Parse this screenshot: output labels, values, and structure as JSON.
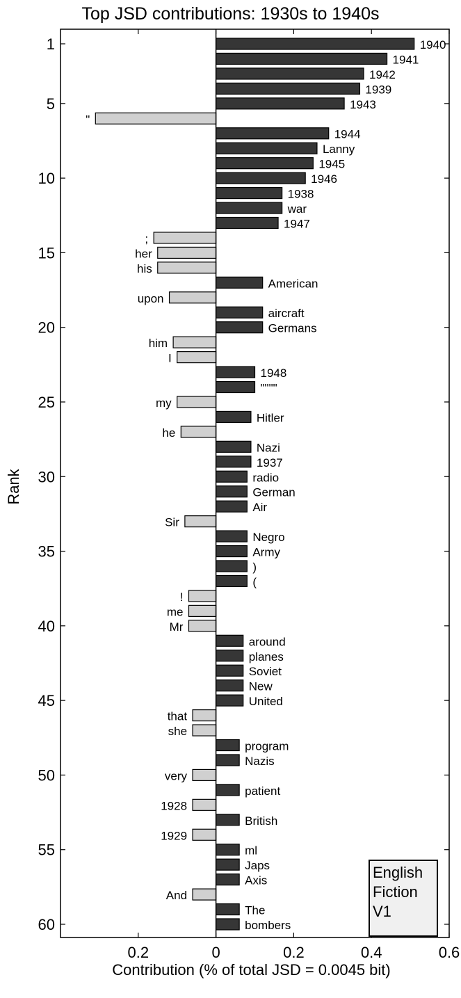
{
  "chart_data": {
    "type": "bar",
    "orientation": "horizontal",
    "title": "Top JSD contributions: 1930s to 1940s",
    "xlabel": "Contribution (% of total JSD = 0.0045 bit)",
    "ylabel": "Rank",
    "xlim": [
      -0.4,
      0.6
    ],
    "ylim": [
      0.5,
      61
    ],
    "x_tick_values": [
      -0.2,
      0,
      0.2,
      0.4,
      0.6
    ],
    "x_tick_labels": [
      "0.2",
      "0",
      "0.2",
      "0.4",
      "0.6"
    ],
    "y_tick_values": [
      1,
      5,
      10,
      15,
      20,
      25,
      30,
      35,
      40,
      45,
      50,
      55,
      60
    ],
    "y_tick_labels": [
      "1",
      "5",
      "10",
      "15",
      "20",
      "25",
      "30",
      "35",
      "40",
      "45",
      "50",
      "55",
      "60"
    ],
    "colors": {
      "positive": "#363636",
      "negative": "#d0d0d0",
      "edge": "#000000",
      "legend_bg": "#f0f0f0"
    },
    "legend_text": [
      "English",
      "Fiction",
      "V1"
    ],
    "bars": [
      {
        "rank": 1,
        "word": "1940",
        "value": 0.51
      },
      {
        "rank": 2,
        "word": "1941",
        "value": 0.44
      },
      {
        "rank": 3,
        "word": "1942",
        "value": 0.38
      },
      {
        "rank": 4,
        "word": "1939",
        "value": 0.37
      },
      {
        "rank": 5,
        "word": "1943",
        "value": 0.33
      },
      {
        "rank": 6,
        "word": "\"",
        "value": -0.31
      },
      {
        "rank": 7,
        "word": "1944",
        "value": 0.29
      },
      {
        "rank": 8,
        "word": "Lanny",
        "value": 0.26
      },
      {
        "rank": 9,
        "word": "1945",
        "value": 0.25
      },
      {
        "rank": 10,
        "word": "1946",
        "value": 0.23
      },
      {
        "rank": 11,
        "word": "1938",
        "value": 0.17
      },
      {
        "rank": 12,
        "word": "war",
        "value": 0.17
      },
      {
        "rank": 13,
        "word": "1947",
        "value": 0.16
      },
      {
        "rank": 14,
        "word": ";",
        "value": -0.16
      },
      {
        "rank": 15,
        "word": "her",
        "value": -0.15
      },
      {
        "rank": 16,
        "word": "his",
        "value": -0.15
      },
      {
        "rank": 17,
        "word": "American",
        "value": 0.12
      },
      {
        "rank": 18,
        "word": "upon",
        "value": -0.12
      },
      {
        "rank": 19,
        "word": "aircraft",
        "value": 0.12
      },
      {
        "rank": 20,
        "word": "Germans",
        "value": 0.12
      },
      {
        "rank": 21,
        "word": "him",
        "value": -0.11
      },
      {
        "rank": 22,
        "word": "I",
        "value": -0.1
      },
      {
        "rank": 23,
        "word": "1948",
        "value": 0.1
      },
      {
        "rank": 24,
        "word": "\"\"\"\"",
        "value": 0.1
      },
      {
        "rank": 25,
        "word": "my",
        "value": -0.1
      },
      {
        "rank": 26,
        "word": "Hitler",
        "value": 0.09
      },
      {
        "rank": 27,
        "word": "he",
        "value": -0.09
      },
      {
        "rank": 28,
        "word": "Nazi",
        "value": 0.09
      },
      {
        "rank": 29,
        "word": "1937",
        "value": 0.09
      },
      {
        "rank": 30,
        "word": "radio",
        "value": 0.08
      },
      {
        "rank": 31,
        "word": "German",
        "value": 0.08
      },
      {
        "rank": 32,
        "word": "Air",
        "value": 0.08
      },
      {
        "rank": 33,
        "word": "Sir",
        "value": -0.08
      },
      {
        "rank": 34,
        "word": "Negro",
        "value": 0.08
      },
      {
        "rank": 35,
        "word": "Army",
        "value": 0.08
      },
      {
        "rank": 36,
        "word": ")",
        "value": 0.08
      },
      {
        "rank": 37,
        "word": "(",
        "value": 0.08
      },
      {
        "rank": 38,
        "word": "!",
        "value": -0.07
      },
      {
        "rank": 39,
        "word": "me",
        "value": -0.07
      },
      {
        "rank": 40,
        "word": "Mr",
        "value": -0.07
      },
      {
        "rank": 41,
        "word": "around",
        "value": 0.07
      },
      {
        "rank": 42,
        "word": "planes",
        "value": 0.07
      },
      {
        "rank": 43,
        "word": "Soviet",
        "value": 0.07
      },
      {
        "rank": 44,
        "word": "New",
        "value": 0.07
      },
      {
        "rank": 45,
        "word": "United",
        "value": 0.07
      },
      {
        "rank": 46,
        "word": "that",
        "value": -0.06
      },
      {
        "rank": 47,
        "word": "she",
        "value": -0.06
      },
      {
        "rank": 48,
        "word": "program",
        "value": 0.06
      },
      {
        "rank": 49,
        "word": "Nazis",
        "value": 0.06
      },
      {
        "rank": 50,
        "word": "very",
        "value": -0.06
      },
      {
        "rank": 51,
        "word": "patient",
        "value": 0.06
      },
      {
        "rank": 52,
        "word": "1928",
        "value": -0.06
      },
      {
        "rank": 53,
        "word": "British",
        "value": 0.06
      },
      {
        "rank": 54,
        "word": "1929",
        "value": -0.06
      },
      {
        "rank": 55,
        "word": "ml",
        "value": 0.06
      },
      {
        "rank": 56,
        "word": "Japs",
        "value": 0.06
      },
      {
        "rank": 57,
        "word": "Axis",
        "value": 0.06
      },
      {
        "rank": 58,
        "word": "And",
        "value": -0.06
      },
      {
        "rank": 59,
        "word": "The",
        "value": 0.06
      },
      {
        "rank": 60,
        "word": "bombers",
        "value": 0.06
      }
    ]
  }
}
